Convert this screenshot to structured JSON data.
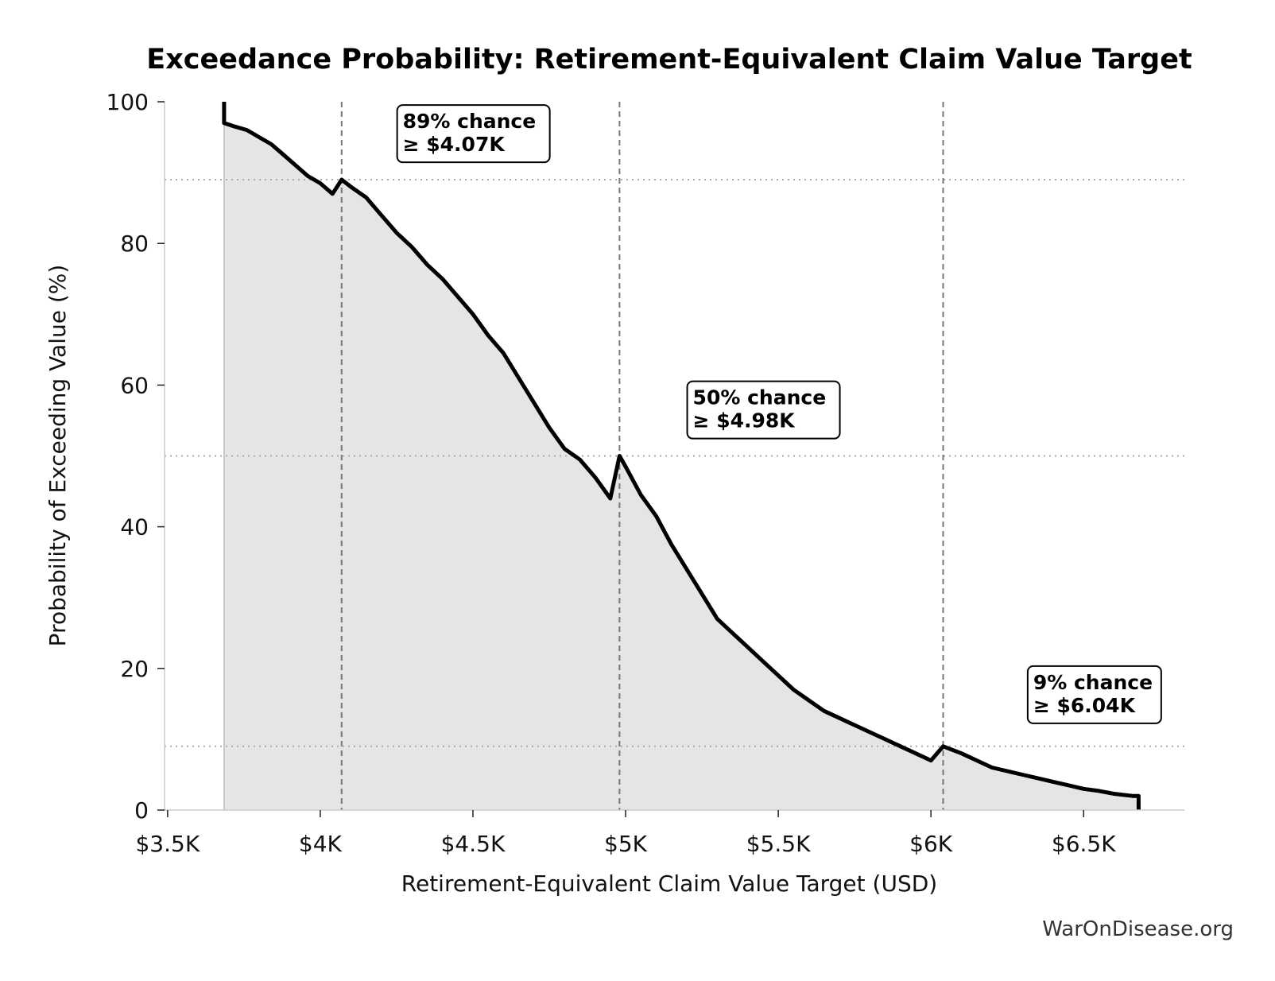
{
  "chart_data": {
    "type": "line",
    "title": "Exceedance Probability: Retirement-Equivalent Claim Value Target",
    "xlabel": "Retirement-Equivalent Claim Value Target (USD)",
    "ylabel": "Probability of Exceeding Value (%)",
    "xlim": [
      3490,
      6830
    ],
    "ylim": [
      0,
      100
    ],
    "x_ticks": [
      3500,
      4000,
      4500,
      5000,
      5500,
      6000,
      6500
    ],
    "x_tick_labels": [
      "$3.5K",
      "$4K",
      "$4.5K",
      "$5K",
      "$5.5K",
      "$6K",
      "$6.5K"
    ],
    "y_ticks": [
      0,
      20,
      40,
      60,
      80,
      100
    ],
    "y_tick_labels": [
      "0",
      "20",
      "40",
      "60",
      "80",
      "100"
    ],
    "grid": false,
    "fill_under_curve": true,
    "series": [
      {
        "x": [
          3685,
          3685,
          3720,
          3760,
          3800,
          3840,
          3880,
          3920,
          3960,
          4000,
          4040,
          4070,
          4100,
          4150,
          4200,
          4250,
          4300,
          4350,
          4400,
          4450,
          4500,
          4550,
          4600,
          4650,
          4700,
          4750,
          4800,
          4850,
          4900,
          4950,
          4980,
          5000,
          5050,
          5100,
          5150,
          5200,
          5250,
          5300,
          5350,
          5400,
          5450,
          5500,
          5550,
          5600,
          5650,
          5700,
          5750,
          5800,
          5850,
          5900,
          5950,
          6000,
          6040,
          6100,
          6150,
          6200,
          6250,
          6300,
          6350,
          6400,
          6450,
          6500,
          6550,
          6600,
          6660,
          6680,
          6680
        ],
        "y": [
          100,
          97,
          96.5,
          96,
          95,
          94,
          92.5,
          91,
          89.5,
          88.5,
          87,
          89,
          88,
          86.5,
          84,
          81.5,
          79.5,
          77,
          75,
          72.5,
          70,
          67,
          64.5,
          61,
          57.5,
          54,
          51,
          49.5,
          47,
          44,
          50,
          48.5,
          44.5,
          41.5,
          37.5,
          34,
          30.5,
          27,
          25,
          23,
          21,
          19,
          17,
          15.5,
          14,
          13,
          12,
          11,
          10,
          9,
          8,
          7,
          9,
          8,
          7,
          6,
          5.5,
          5,
          4.5,
          4,
          3.5,
          3,
          2.7,
          2.3,
          2,
          2,
          0
        ]
      }
    ],
    "reference_lines": {
      "vertical": [
        4070,
        4980,
        6040
      ],
      "horizontal": [
        89,
        50,
        9
      ]
    },
    "annotations": [
      {
        "line1": "89% chance",
        "line2": "≥ $4.07K",
        "x": 4270,
        "y": 96.5
      },
      {
        "line1": "50% chance",
        "line2": "≥ $4.98K",
        "x": 5220,
        "y": 57.5
      },
      {
        "line1": "9% chance",
        "line2": "≥ $6.04K",
        "x": 6335,
        "y": 17.3
      }
    ],
    "watermark": "WarOnDisease.org",
    "colors": {
      "curve": "#000000",
      "fill": "#e5e5e5",
      "reference_vertical": "#777777",
      "reference_horizontal": "#aaaaaa",
      "axis": "#cccccc",
      "baseline": "#bbbbbb"
    }
  }
}
